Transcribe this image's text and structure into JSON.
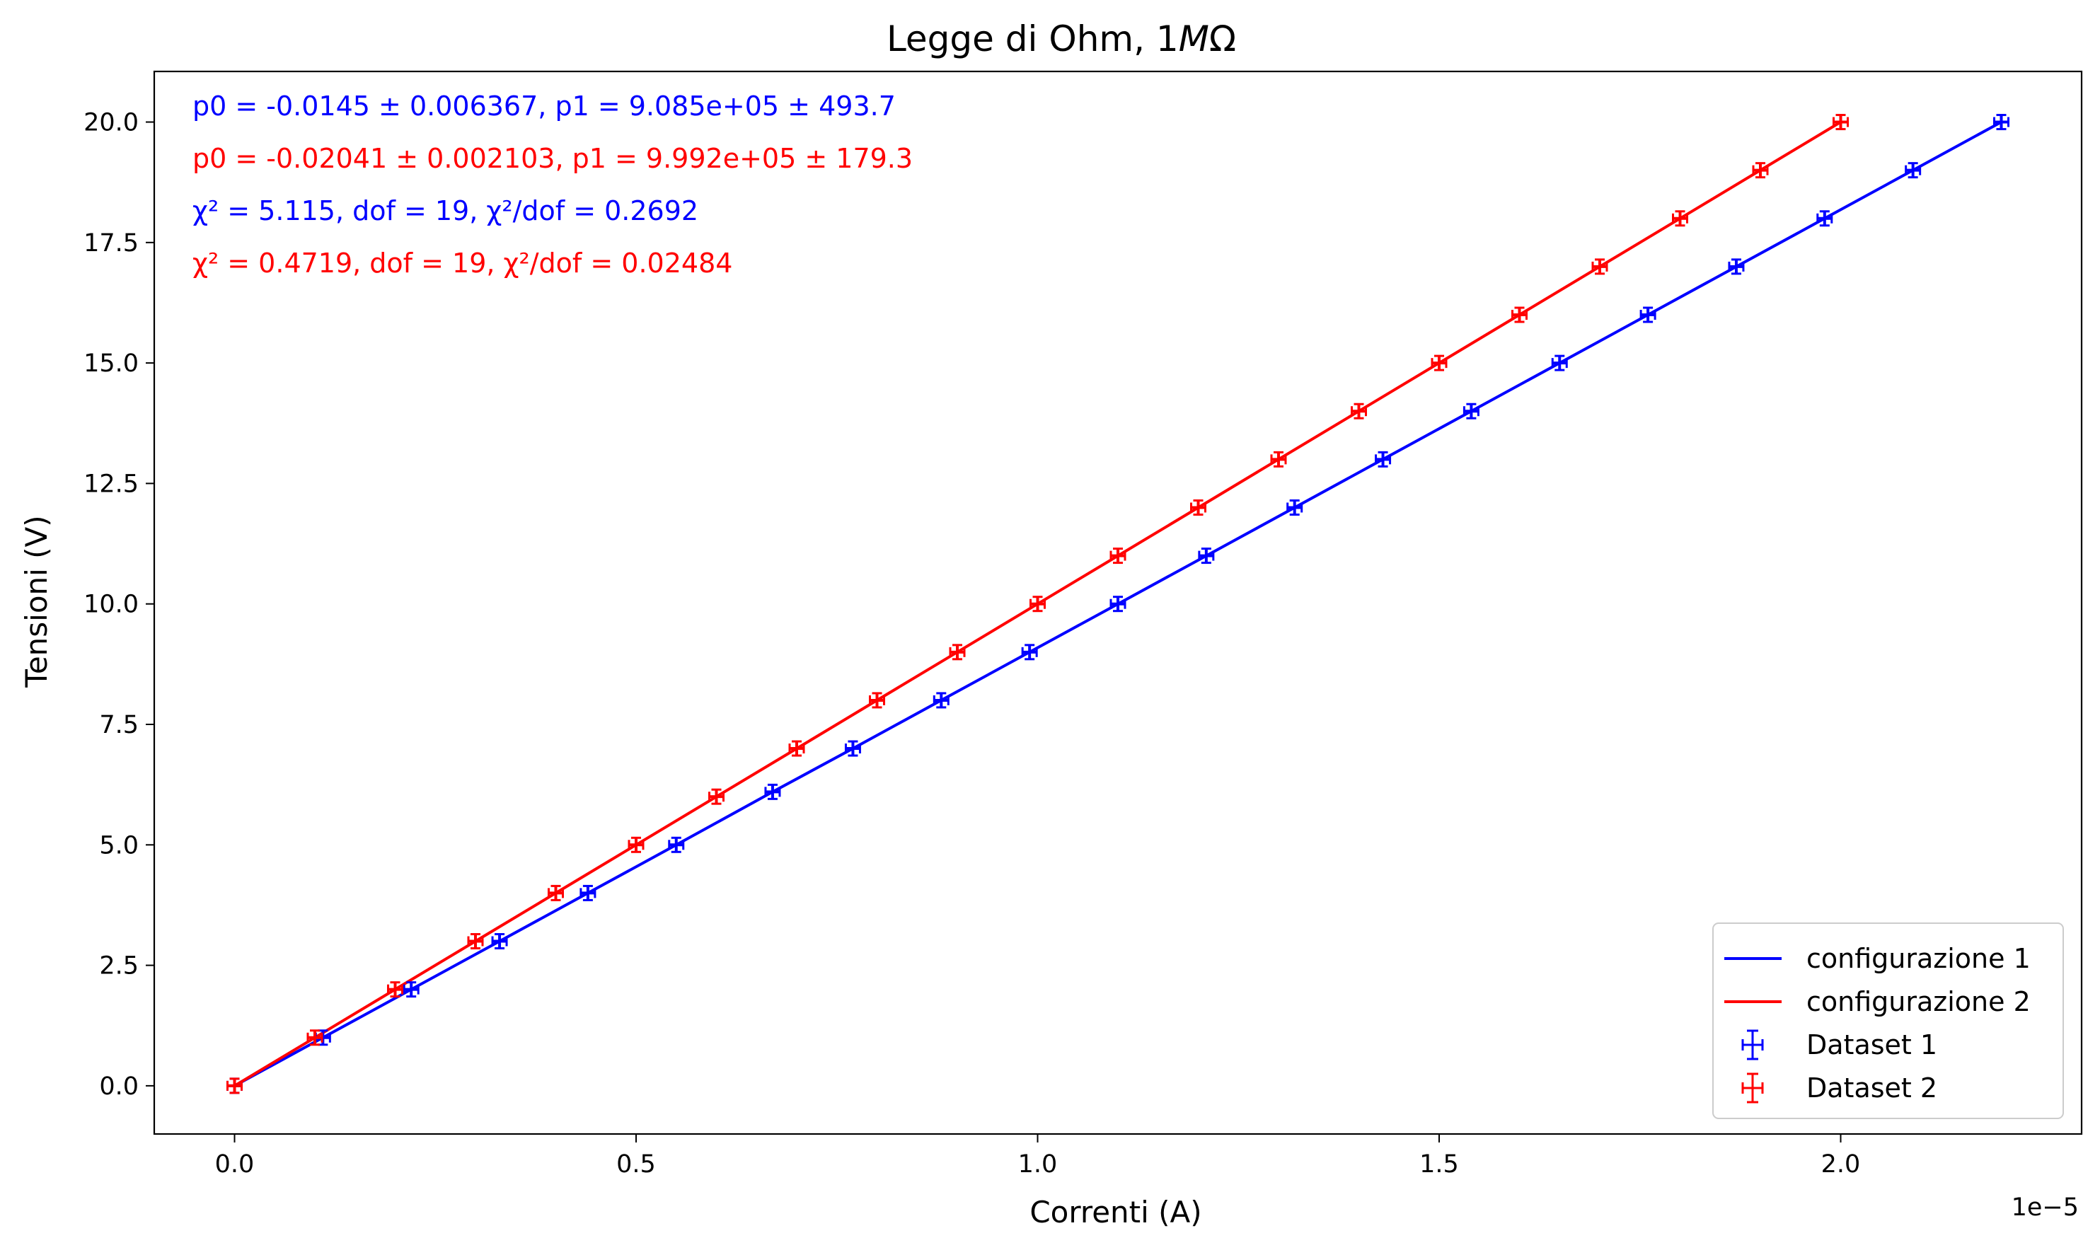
{
  "chart_data": {
    "type": "scatter",
    "title": "Legge di Ohm, 1MΩ",
    "title_parts": {
      "prefix": "Legge di Ohm, 1",
      "italic": "M",
      "suffix": "Ω"
    },
    "xlabel": "Correnti (A)",
    "ylabel": "Tensioni (V)",
    "x_offset_label": "1e−5",
    "xlim": [
      -0.1,
      2.3
    ],
    "ylim": [
      -1.0,
      21.05
    ],
    "x_scale_note": "x values in units of 1e-5 A",
    "xticks": [
      {
        "value": 0.0,
        "label": "0.0"
      },
      {
        "value": 0.5,
        "label": "0.5"
      },
      {
        "value": 1.0,
        "label": "1.0"
      },
      {
        "value": 1.5,
        "label": "1.5"
      },
      {
        "value": 2.0,
        "label": "2.0"
      }
    ],
    "yticks": [
      {
        "value": 0.0,
        "label": "0.0"
      },
      {
        "value": 2.5,
        "label": "2.5"
      },
      {
        "value": 5.0,
        "label": "5.0"
      },
      {
        "value": 7.5,
        "label": "7.5"
      },
      {
        "value": 10.0,
        "label": "10.0"
      },
      {
        "value": 12.5,
        "label": "12.5"
      },
      {
        "value": 15.0,
        "label": "15.0"
      },
      {
        "value": 17.5,
        "label": "17.5"
      },
      {
        "value": 20.0,
        "label": "20.0"
      }
    ],
    "grid": false,
    "legend": {
      "placement": "lower-right",
      "entries": [
        {
          "label": "configurazione 1",
          "kind": "line",
          "color": "#0000ff"
        },
        {
          "label": "configurazione 2",
          "kind": "line",
          "color": "#ff0000"
        },
        {
          "label": "Dataset 1",
          "kind": "errorbar",
          "color": "#0000ff"
        },
        {
          "label": "Dataset 2",
          "kind": "errorbar",
          "color": "#ff0000"
        }
      ]
    },
    "annotations": [
      {
        "text": "p0 = -0.0145 ± 0.006367, p1 = 9.085e+05 ± 493.7",
        "color": "#0000ff"
      },
      {
        "text": "p0 = -0.02041 ± 0.002103, p1 = 9.992e+05 ± 179.3",
        "color": "#ff0000"
      },
      {
        "text": "χ² = 5.115, dof = 19, χ²/dof = 0.2692",
        "color": "#0000ff"
      },
      {
        "text": "χ² = 0.4719, dof = 19, χ²/dof = 0.02484",
        "color": "#ff0000"
      }
    ],
    "series": [
      {
        "name": "Dataset 1",
        "kind": "errorbar",
        "color": "#0000ff",
        "x": [
          0.0,
          0.11,
          0.22,
          0.33,
          0.44,
          0.55,
          0.67,
          0.77,
          0.88,
          0.99,
          1.1,
          1.21,
          1.32,
          1.43,
          1.54,
          1.65,
          1.76,
          1.87,
          1.98,
          2.09,
          2.2
        ],
        "y": [
          0,
          1,
          2,
          3,
          4,
          5,
          6.1,
          7,
          8,
          9,
          10,
          11,
          12,
          13,
          14,
          15,
          16,
          17,
          18,
          19,
          20
        ]
      },
      {
        "name": "Dataset 2",
        "kind": "errorbar",
        "color": "#ff0000",
        "x": [
          0.0,
          0.1,
          0.2,
          0.3,
          0.4,
          0.5,
          0.6,
          0.7,
          0.8,
          0.9,
          1.0,
          1.1,
          1.2,
          1.3,
          1.4,
          1.5,
          1.6,
          1.7,
          1.8,
          1.9,
          2.0
        ],
        "y": [
          0,
          1,
          2,
          3,
          4,
          5,
          6,
          7,
          8,
          9,
          10,
          11,
          12,
          13,
          14,
          15,
          16,
          17,
          18,
          19,
          20
        ]
      },
      {
        "name": "configurazione 1",
        "kind": "line",
        "color": "#0000ff",
        "x": [
          0.0,
          0.11,
          0.22,
          0.33,
          0.44,
          0.55,
          0.67,
          0.77,
          0.88,
          0.99,
          1.1,
          1.21,
          1.32,
          1.43,
          1.54,
          1.65,
          1.76,
          1.87,
          1.98,
          2.09,
          2.2
        ],
        "y": [
          0,
          1,
          2,
          3,
          4,
          5,
          6.1,
          7,
          8,
          9,
          10,
          11,
          12,
          13,
          14,
          15,
          16,
          17,
          18,
          19,
          20
        ]
      },
      {
        "name": "configurazione 2",
        "kind": "line",
        "color": "#ff0000",
        "x": [
          0.0,
          0.1,
          0.2,
          0.3,
          0.4,
          0.5,
          0.6,
          0.7,
          0.8,
          0.9,
          1.0,
          1.1,
          1.2,
          1.3,
          1.4,
          1.5,
          1.6,
          1.7,
          1.8,
          1.9,
          2.0
        ],
        "y": [
          0,
          1,
          2,
          3,
          4,
          5,
          6,
          7,
          8,
          9,
          10,
          11,
          12,
          13,
          14,
          15,
          16,
          17,
          18,
          19,
          20
        ]
      }
    ]
  }
}
